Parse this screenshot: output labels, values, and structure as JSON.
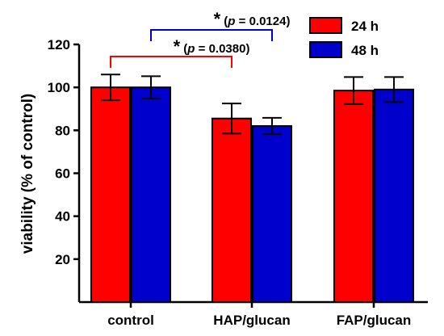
{
  "chart_data": {
    "type": "bar",
    "title": "",
    "xlabel": "",
    "ylabel": "viability (% of control)",
    "ylim": [
      0,
      120
    ],
    "yticks": [
      20,
      40,
      60,
      80,
      100,
      120
    ],
    "categories": [
      "control",
      "HAP/glucan",
      "FAP/glucan"
    ],
    "series": [
      {
        "name": "24 h",
        "color": "#ff0000",
        "values": [
          100,
          85.5,
          98.5
        ],
        "errors": [
          6,
          7,
          6.3
        ]
      },
      {
        "name": "48 h",
        "color": "#0000cc",
        "values": [
          100,
          82,
          99
        ],
        "errors": [
          5.2,
          3.8,
          5.8
        ]
      }
    ],
    "legend_position": "top-right",
    "annotations": [
      {
        "label_star": "*",
        "label_open": " (",
        "label_p": "p",
        "label_rest": " = 0.0124)",
        "from": "control",
        "to": "HAP/glucan",
        "series": "48 h",
        "color": "#0000cc"
      },
      {
        "label_star": "*",
        "label_open": " (",
        "label_p": "p",
        "label_rest": " = 0.0380)",
        "from": "control",
        "to": "HAP/glucan",
        "series": "24 h",
        "color": "#ff0000"
      }
    ]
  }
}
